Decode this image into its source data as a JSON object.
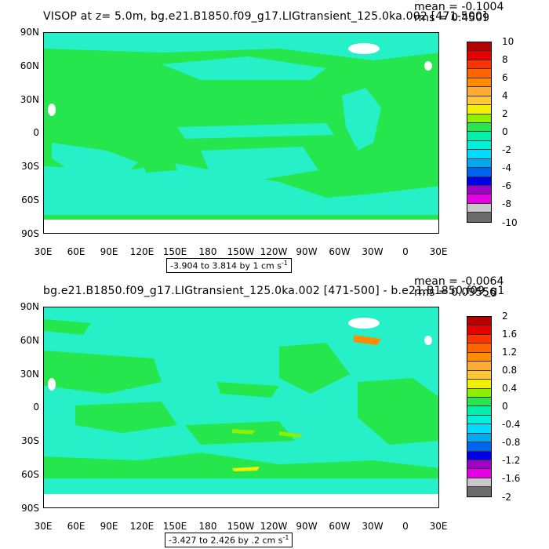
{
  "panels": [
    {
      "title": "VISOP at z=   5.0m, bg.e21.B1850.f09_g17.LIGtransient_125.0ka.002 [471-500]",
      "mean": "mean = -0.1004",
      "rms": "rms = 0.4509",
      "range_text": "-3.904 to 3.814 by 1 cm s",
      "range_exp": "-1",
      "colorbar_labels": [
        "10",
        "8",
        "6",
        "4",
        "2",
        "0",
        "-2",
        "-4",
        "-6",
        "-8",
        "-10"
      ]
    },
    {
      "title": "bg.e21.B1850.f09_g17.LIGtransient_125.0ka.002 [471-500] - b.e21.B1850.f09_g1",
      "mean": "mean = -0.0064",
      "rms": "rms = 0.09556",
      "range_text": "-3.427 to 2.426 by .2 cm s",
      "range_exp": "-1",
      "colorbar_labels": [
        "2",
        "1.6",
        "1.2",
        "0.8",
        "0.4",
        "0",
        "-0.4",
        "-0.8",
        "-1.2",
        "-1.6",
        "-2"
      ]
    }
  ],
  "lat_labels": [
    "90N",
    "60N",
    "30N",
    "0",
    "30S",
    "60S",
    "90S"
  ],
  "lon_labels": [
    "30E",
    "60E",
    "90E",
    "120E",
    "150E",
    "180",
    "150W",
    "120W",
    "90W",
    "60W",
    "30W",
    "0",
    "30E"
  ],
  "colorbar_colors": [
    "#6b6b6b",
    "#c8c8c8",
    "#e600e6",
    "#a000c8",
    "#0000e6",
    "#0064f0",
    "#00aaf0",
    "#00dcff",
    "#00f0dc",
    "#00f0aa",
    "#26e64d",
    "#8cf000",
    "#f0f000",
    "#ffc832",
    "#ffaa32",
    "#ff8c00",
    "#ff6400",
    "#ff3200",
    "#e60000",
    "#b40000"
  ],
  "colors": {
    "land": "#26e64d",
    "ocean": "#26f0c8",
    "ice": "#ffffff"
  }
}
